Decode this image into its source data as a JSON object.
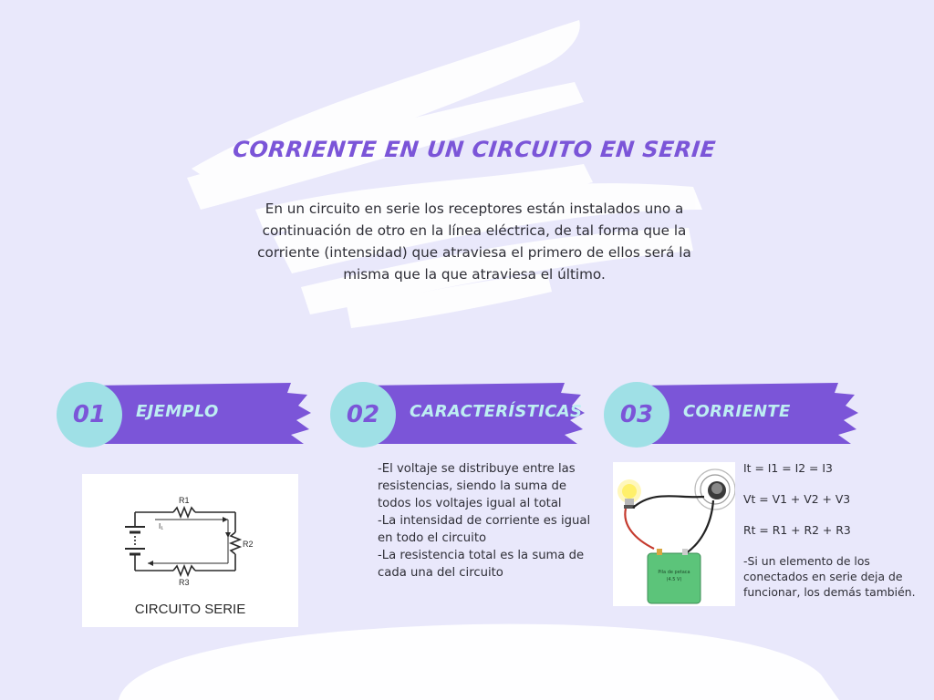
{
  "title": "CORRIENTE EN UN CIRCUITO EN SERIE",
  "intro": "En un circuito en serie los receptores están instalados uno a continuación de otro en la línea eléctrica, de tal forma que la corriente (intensidad) que atraviesa el primero de ellos será la misma que la que atraviesa el último.",
  "sections": [
    {
      "number": "01",
      "label": "EJEMPLO"
    },
    {
      "number": "02",
      "label": "CARACTERÍSTICAS"
    },
    {
      "number": "03",
      "label": "CORRIENTE"
    }
  ],
  "example": {
    "caption": "CIRCUITO SERIE",
    "r1": "R1",
    "r2": "R2",
    "r3": "R3",
    "i1": "I₁"
  },
  "features": [
    "-El voltaje se distribuye entre las resistencias, siendo la suma de todos los voltajes igual al total",
    "-La intensidad de corriente es igual en todo el circuito",
    "-La resistencia total es la suma de cada una del circuito"
  ],
  "current": {
    "formulas": [
      "It = I1 = I2 = I3",
      "Vt = V1 + V2 + V3",
      "Rt = R1 + R2 + R3"
    ],
    "note": "-Si un elemento de los conectados en serie deja de funcionar, los demás también.",
    "battery_label_line1": "Pila de petaca",
    "battery_label_line2": "(4.5 V)"
  },
  "colors": {
    "background": "#e9e8fb",
    "accent_purple": "#7b55d8",
    "badge_circle": "#9fe0e6",
    "brush_white": "#ffffff"
  }
}
